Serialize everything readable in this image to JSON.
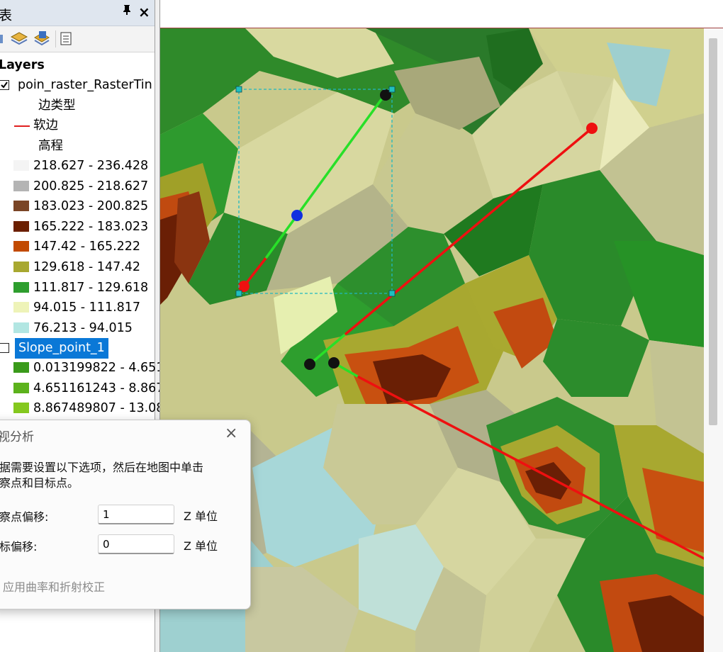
{
  "toc": {
    "title": "表",
    "pin": "⊥",
    "close": "×",
    "layers_label": "Layers",
    "tin_layer": {
      "name": "poin_raster_RasterTin",
      "checked": true,
      "edge_type_heading": "边类型",
      "soft_edge": {
        "label": "软边",
        "color": "#e02020"
      },
      "elevation_heading": "高程",
      "classes": [
        {
          "label": "218.627 - 236.428",
          "color": "#f4f4f4"
        },
        {
          "label": "200.825 - 218.627",
          "color": "#b4b4b4"
        },
        {
          "label": "183.023 - 200.825",
          "color": "#7a4526"
        },
        {
          "label": "165.222 - 183.023",
          "color": "#6b1f00"
        },
        {
          "label": "147.42 - 165.222",
          "color": "#c24a00"
        },
        {
          "label": "129.618 - 147.42",
          "color": "#a8a830"
        },
        {
          "label": "111.817 - 129.618",
          "color": "#2e9e2e"
        },
        {
          "label": "94.015 - 111.817",
          "color": "#eef3b8"
        },
        {
          "label": "76.213 - 94.015",
          "color": "#b2e6e2"
        }
      ]
    },
    "slope_layer": {
      "name": "Slope_point_1",
      "checked": false,
      "classes": [
        {
          "label": "0.013199822 - 4.651",
          "color": "#3a9a1a"
        },
        {
          "label": "4.651161243 - 8.867",
          "color": "#5cb21c"
        },
        {
          "label": "8.867489807 - 13.08",
          "color": "#84c81e"
        }
      ]
    }
  },
  "map": {
    "colors": {
      "sight_visible": "#28e028",
      "sight_hidden": "#ee1010",
      "selection": "#20c0c0"
    }
  },
  "dialog": {
    "title": "视分析",
    "close": "×",
    "info_line1": "据需要设置以下选项，然后在地图中单击",
    "info_line2": "察点和目标点。",
    "observer_label": "察点偏移:",
    "observer_value": "1",
    "target_label": "标偏移:",
    "target_value": "0",
    "unit": "Z 单位",
    "curvature_label": "应用曲率和折射校正"
  }
}
